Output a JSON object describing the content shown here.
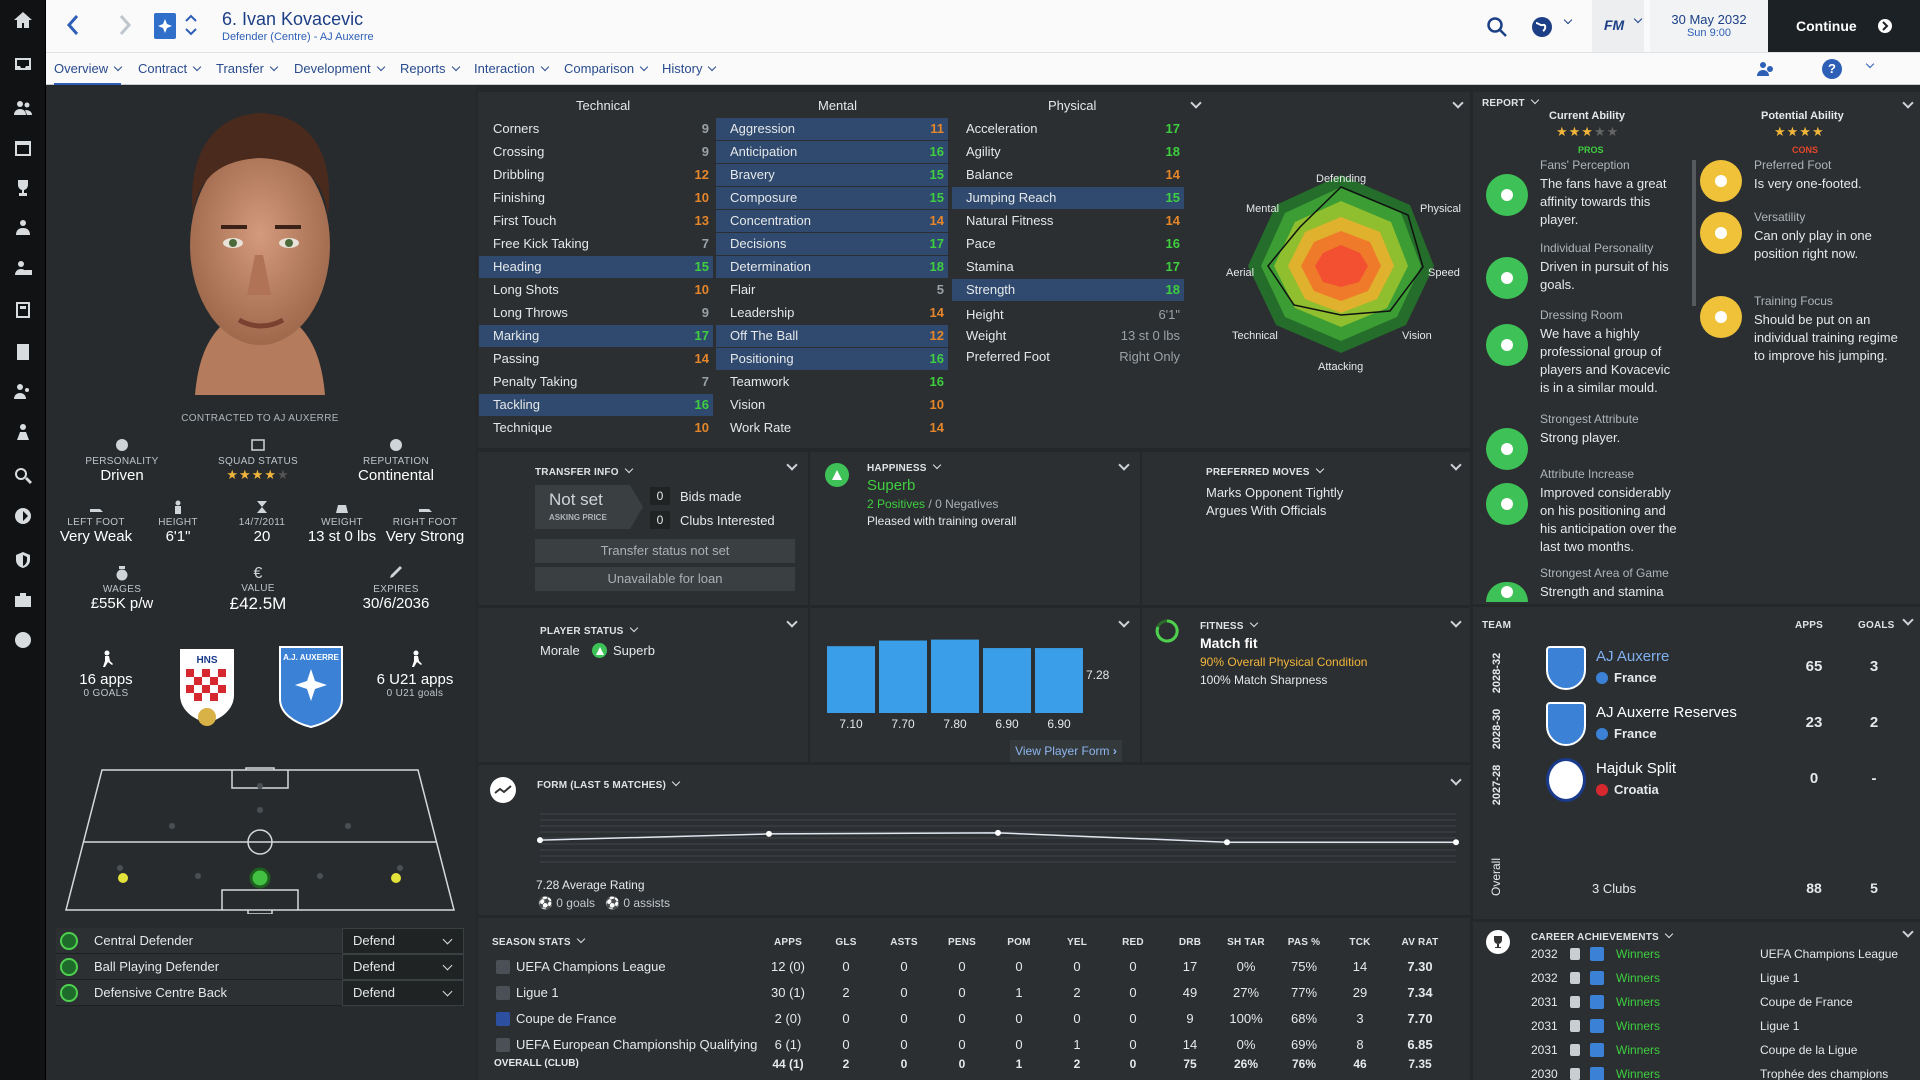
{
  "window": {
    "title": "6. Ivan Kovacevic",
    "subtitle": "Defender (Centre) - AJ Auxerre"
  },
  "topbar": {
    "date": "30 May 2032",
    "time": "Sun 9:00",
    "continue_label": "Continue",
    "fm_logo": "FM"
  },
  "nav": {
    "tabs": [
      "Overview",
      "Contract",
      "Transfer",
      "Development",
      "Reports",
      "Interaction",
      "Comparison",
      "History"
    ]
  },
  "profile": {
    "contracted_to": "CONTRACTED TO AJ AUXERRE",
    "personality": {
      "label": "PERSONALITY",
      "value": "Driven"
    },
    "squad_status": {
      "label": "SQUAD STATUS",
      "stars": 4
    },
    "reputation": {
      "label": "REPUTATION",
      "value": "Continental"
    },
    "left_foot": {
      "label": "LEFT FOOT",
      "value": "Very Weak"
    },
    "height": {
      "label": "HEIGHT",
      "value": "6'1\""
    },
    "dob": {
      "label": "14/7/2011",
      "value": "20"
    },
    "weight": {
      "label": "WEIGHT",
      "value": "13 st 0 lbs"
    },
    "right_foot": {
      "label": "RIGHT FOOT",
      "value": "Very Strong"
    },
    "wages": {
      "label": "WAGES",
      "value": "£55K p/w"
    },
    "value": {
      "label": "VALUE",
      "value": "£42.5M"
    },
    "expires": {
      "label": "EXPIRES",
      "value": "30/6/2036"
    },
    "intl_apps": "16 apps",
    "intl_goals": "0 GOALS",
    "club_badge_text": "A.J. AUXERRE",
    "nation_badge_text": "HNS",
    "u21_apps": "6 U21 apps",
    "u21_goals": "0 U21 goals"
  },
  "roles": [
    {
      "name": "Central Defender",
      "duty": "Defend"
    },
    {
      "name": "Ball Playing Defender",
      "duty": "Defend"
    },
    {
      "name": "Defensive Centre Back",
      "duty": "Defend"
    }
  ],
  "attributes": {
    "headers": [
      "Technical",
      "Mental",
      "Physical"
    ],
    "technical": [
      {
        "name": "Corners",
        "value": "9"
      },
      {
        "name": "Crossing",
        "value": "9"
      },
      {
        "name": "Dribbling",
        "value": "12"
      },
      {
        "name": "Finishing",
        "value": "10"
      },
      {
        "name": "First Touch",
        "value": "13"
      },
      {
        "name": "Free Kick Taking",
        "value": "7"
      },
      {
        "name": "Heading",
        "value": "15"
      },
      {
        "name": "Long Shots",
        "value": "10"
      },
      {
        "name": "Long Throws",
        "value": "9"
      },
      {
        "name": "Marking",
        "value": "17"
      },
      {
        "name": "Passing",
        "value": "14"
      },
      {
        "name": "Penalty Taking",
        "value": "7"
      },
      {
        "name": "Tackling",
        "value": "16"
      },
      {
        "name": "Technique",
        "value": "10"
      }
    ],
    "mental": [
      {
        "name": "Aggression",
        "value": "11"
      },
      {
        "name": "Anticipation",
        "value": "16"
      },
      {
        "name": "Bravery",
        "value": "15"
      },
      {
        "name": "Composure",
        "value": "15"
      },
      {
        "name": "Concentration",
        "value": "14"
      },
      {
        "name": "Decisions",
        "value": "17"
      },
      {
        "name": "Determination",
        "value": "18"
      },
      {
        "name": "Flair",
        "value": "5"
      },
      {
        "name": "Leadership",
        "value": "14"
      },
      {
        "name": "Off The Ball",
        "value": "12"
      },
      {
        "name": "Positioning",
        "value": "16"
      },
      {
        "name": "Teamwork",
        "value": "16"
      },
      {
        "name": "Vision",
        "value": "10"
      },
      {
        "name": "Work Rate",
        "value": "14"
      }
    ],
    "physical": [
      {
        "name": "Acceleration",
        "value": "17"
      },
      {
        "name": "Agility",
        "value": "18"
      },
      {
        "name": "Balance",
        "value": "14"
      },
      {
        "name": "Jumping Reach",
        "value": "15"
      },
      {
        "name": "Natural Fitness",
        "value": "14"
      },
      {
        "name": "Pace",
        "value": "16"
      },
      {
        "name": "Stamina",
        "value": "17"
      },
      {
        "name": "Strength",
        "value": "18"
      }
    ],
    "extra": [
      {
        "name": "Height",
        "value": "6'1\""
      },
      {
        "name": "Weight",
        "value": "13 st 0 lbs"
      },
      {
        "name": "Preferred Foot",
        "value": "Right Only"
      }
    ]
  },
  "radar": {
    "labels": [
      "Defending",
      "Physical",
      "Speed",
      "Vision",
      "Attacking",
      "Technical",
      "Aerial",
      "Mental"
    ]
  },
  "transfer_info": {
    "title": "TRANSFER INFO",
    "asking_value": "Not set",
    "asking_label": "ASKING PRICE",
    "bids_count": "0",
    "bids_label": "Bids made",
    "clubs_count": "0",
    "clubs_label": "Clubs Interested",
    "status_btn": "Transfer status not set",
    "loan_btn": "Unavailable for loan"
  },
  "happiness": {
    "title": "HAPPINESS",
    "value": "Superb",
    "positives": "2 Positives",
    "separator": "/",
    "negatives": "0 Negatives",
    "note": "Pleased with training overall"
  },
  "preferred_moves": {
    "title": "PREFERRED MOVES",
    "items": [
      "Marks Opponent Tightly",
      "Argues With Officials"
    ]
  },
  "player_status": {
    "title": "PLAYER STATUS",
    "morale_label": "Morale",
    "morale_value": "Superb"
  },
  "form_chart": {
    "label_avg": "7.28",
    "button": "View Player Form"
  },
  "chart_data": [
    {
      "type": "bar",
      "categories": [
        "7.10",
        "7.70",
        "7.80",
        "6.90",
        "6.90"
      ],
      "values": [
        7.1,
        7.7,
        7.8,
        6.9,
        6.9
      ]
    },
    {
      "type": "line",
      "values": [
        7.1,
        7.7,
        7.8,
        6.9,
        6.9
      ]
    }
  ],
  "fitness": {
    "title": "FITNESS",
    "value": "Match fit",
    "physical": "90% Overall Physical Condition",
    "sharpness": "100% Match Sharpness"
  },
  "form": {
    "title": "FORM (LAST 5 MATCHES)",
    "avg": "7.28 Average Rating",
    "goals": "0 goals",
    "assists": "0 assists"
  },
  "season_stats": {
    "title": "SEASON STATS",
    "columns": [
      "APPS",
      "GLS",
      "ASTS",
      "PENS",
      "POM",
      "YEL",
      "RED",
      "DRB",
      "SH TAR",
      "PAS %",
      "TCK",
      "AV RAT"
    ],
    "rows": [
      {
        "comp": "UEFA Champions League",
        "cells": [
          "12 (0)",
          "0",
          "0",
          "0",
          "0",
          "0",
          "0",
          "17",
          "0%",
          "75%",
          "14",
          "7.30"
        ]
      },
      {
        "comp": "Ligue 1",
        "cells": [
          "30 (1)",
          "2",
          "0",
          "0",
          "1",
          "2",
          "0",
          "49",
          "27%",
          "77%",
          "29",
          "7.34"
        ]
      },
      {
        "comp": "Coupe de France",
        "cells": [
          "2 (0)",
          "0",
          "0",
          "0",
          "0",
          "0",
          "0",
          "9",
          "100%",
          "68%",
          "3",
          "7.70"
        ]
      },
      {
        "comp": "UEFA European Championship Qualifying",
        "cells": [
          "6 (1)",
          "0",
          "0",
          "0",
          "0",
          "1",
          "0",
          "14",
          "0%",
          "69%",
          "8",
          "6.85"
        ]
      },
      {
        "comp": "OVERALL (CLUB)",
        "cells": [
          "44 (1)",
          "2",
          "0",
          "0",
          "1",
          "2",
          "0",
          "75",
          "26%",
          "76%",
          "46",
          "7.35"
        ]
      }
    ]
  },
  "report": {
    "title": "REPORT",
    "current_ability": "Current Ability",
    "potential_ability": "Potential Ability",
    "pros": "PROS",
    "cons": "CONS",
    "pros_items": [
      {
        "label": "Fans' Perception",
        "text": "The fans have a great affinity towards this player."
      },
      {
        "label": "Individual Personality",
        "text": "Driven in pursuit of his goals."
      },
      {
        "label": "Dressing Room",
        "text": "We have a highly professional group of players and Kovacevic is in a similar mould."
      },
      {
        "label": "Strongest Attribute",
        "text": "Strong player."
      },
      {
        "label": "Attribute Increase",
        "text": "Improved considerably on his positioning and his anticipation over the last two months."
      },
      {
        "label": "Strongest Area of Game",
        "text": "Strength and stamina"
      }
    ],
    "cons_items": [
      {
        "label": "Preferred Foot",
        "text": "Is very one-footed."
      },
      {
        "label": "Versatility",
        "text": "Can only play in one position right now."
      },
      {
        "label": "Training Focus",
        "text": "Should be put on an individual training regime to improve his jumping."
      }
    ]
  },
  "history": {
    "team_h": "TEAM",
    "apps_h": "APPS",
    "goals_h": "GOALS",
    "seasons": [
      "2028-32",
      "2028-30",
      "2027-28"
    ],
    "teams": [
      {
        "name": "AJ Auxerre",
        "nation": "France",
        "apps": "65",
        "goals": "3"
      },
      {
        "name": "AJ Auxerre Reserves",
        "nation": "France",
        "apps": "23",
        "goals": "2"
      },
      {
        "name": "Hajduk Split",
        "nation": "Croatia",
        "apps": "0",
        "goals": "-"
      }
    ],
    "overall_label": "Overall",
    "overall_clubs": "3 Clubs",
    "overall_apps": "88",
    "overall_goals": "5"
  },
  "achievements": {
    "title": "CAREER ACHIEVEMENTS",
    "rows": [
      {
        "year": "2032",
        "result": "Winners",
        "comp": "UEFA Champions League"
      },
      {
        "year": "2032",
        "result": "Winners",
        "comp": "Ligue 1"
      },
      {
        "year": "2031",
        "result": "Winners",
        "comp": "Coupe de France"
      },
      {
        "year": "2031",
        "result": "Winners",
        "comp": "Ligue 1"
      },
      {
        "year": "2031",
        "result": "Winners",
        "comp": "Coupe de la Ligue"
      },
      {
        "year": "2030",
        "result": "Winners",
        "comp": "Trophée des champions"
      }
    ]
  },
  "colors": {
    "accent": "#2d5fb6",
    "green": "#3fce3f",
    "orange": "#e5862a",
    "highlight": "#2f4a6e",
    "bar": "#3a9ee8"
  }
}
